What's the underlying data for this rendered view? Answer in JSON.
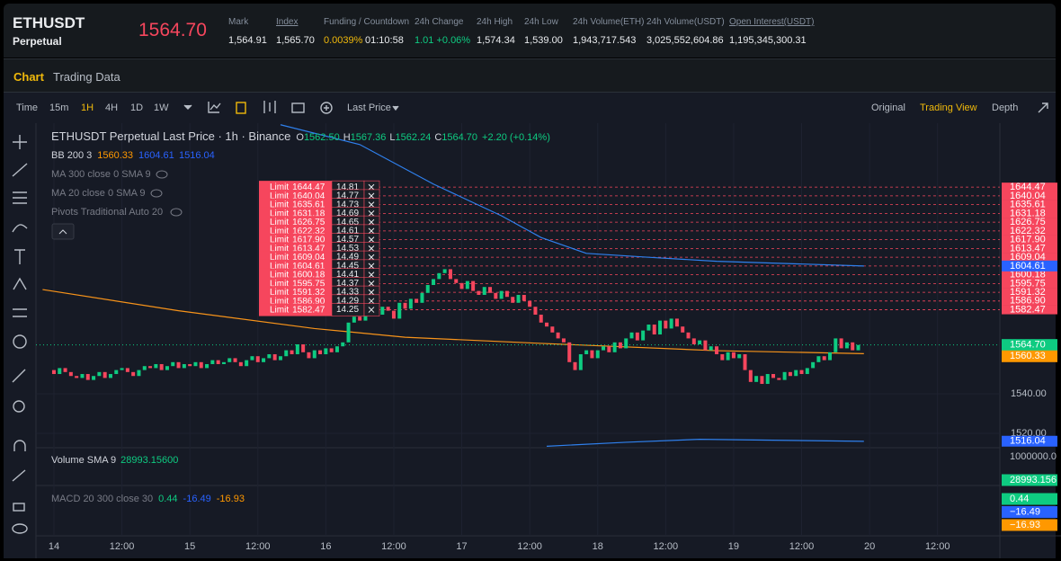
{
  "header": {
    "symbol": "ETHUSDT",
    "contract": "Perpetual",
    "last_price": "1564.70",
    "stats": [
      {
        "label": "Mark",
        "value": "1,564.91"
      },
      {
        "label": "Index",
        "value": "1,565.70"
      },
      {
        "label": "Funding / Countdown",
        "value": "0.0039%",
        "extra": "01:10:58"
      },
      {
        "label": "24h Change",
        "value": "1.01 +0.06%"
      },
      {
        "label": "24h High",
        "value": "1,574.34"
      },
      {
        "label": "24h Low",
        "value": "1,539.00"
      },
      {
        "label": "24h Volume(ETH)",
        "value": "1,943,717.543"
      },
      {
        "label": "24h Volume(USDT)",
        "value": "3,025,552,604.86"
      },
      {
        "label": "Open Interest(USDT)",
        "value": "1,195,345,300.31"
      }
    ]
  },
  "tabs": [
    "Chart",
    "Trading Data"
  ],
  "toolbar": {
    "items": [
      "Time",
      "15m",
      "1H",
      "4H",
      "1D",
      "1W"
    ],
    "price_source": "Last Price",
    "views": [
      "Original",
      "Trading View",
      "Depth"
    ]
  },
  "chart": {
    "type": "candlestick",
    "legend": {
      "title": "ETHUSDT Perpetual Last Price · 1h · Binance",
      "open": "1562.50",
      "high": "1567.36",
      "low": "1562.24",
      "close": "1564.70",
      "change": "+2.20 (+0.14%)"
    },
    "bb": {
      "label": "BB 200 3",
      "basis": "1560.33",
      "upper": "1604.61",
      "lower": "1516.04"
    },
    "studies": [
      "MA 300 close 0 SMA 9",
      "MA 20 close 0 SMA 9",
      "Pivots Traditional Auto 20"
    ],
    "volume": {
      "label": "Volume SMA 9",
      "value": "28993.15600",
      "scale": "1000000.0",
      "axis_value": "28993.156"
    },
    "macd": {
      "label": "MACD 20 300 close 30",
      "values": [
        "0.44",
        "-16.49",
        "-16.93"
      ],
      "axis_values": [
        "0.44",
        "−16.49",
        "−16.93"
      ],
      "colors": [
        "#0ecb81",
        "#2962ff",
        "#ff9800"
      ]
    },
    "xlim": [
      -1.9,
      167
    ],
    "ylim": [
      1513.2,
      1676.8
    ],
    "xticks": [
      {
        "value": 0,
        "label": "14"
      },
      {
        "value": 12,
        "label": "12:00"
      },
      {
        "value": 24,
        "label": "15"
      },
      {
        "value": 36,
        "label": "12:00"
      },
      {
        "value": 48,
        "label": "16"
      },
      {
        "value": 60,
        "label": "12:00"
      },
      {
        "value": 72,
        "label": "17"
      },
      {
        "value": 84,
        "label": "12:00"
      },
      {
        "value": 96,
        "label": "18"
      },
      {
        "value": 108,
        "label": "12:00"
      },
      {
        "value": 120,
        "label": "19"
      },
      {
        "value": 132,
        "label": "12:00"
      },
      {
        "value": 144,
        "label": "20"
      },
      {
        "value": 156,
        "label": "12:00"
      }
    ],
    "yticks": [
      "1540.00",
      "1520.00"
    ],
    "first_hour": -1,
    "up_color": "#0ecb81",
    "down_color": "#f6465d",
    "closes": [
      1552,
      1550,
      1553,
      1551,
      1549,
      1548,
      1550,
      1547,
      1549,
      1551,
      1548,
      1550,
      1552,
      1553,
      1551,
      1549,
      1552,
      1554,
      1553,
      1555,
      1552,
      1554,
      1556,
      1553,
      1555,
      1554,
      1556,
      1553,
      1555,
      1557,
      1555,
      1556,
      1558,
      1556,
      1554,
      1557,
      1559,
      1556,
      1558,
      1560,
      1557,
      1559,
      1562,
      1560,
      1565,
      1561,
      1558,
      1562,
      1560,
      1563,
      1561,
      1564,
      1566,
      1576,
      1579,
      1577,
      1581,
      1583,
      1580,
      1584,
      1582,
      1578,
      1586,
      1583,
      1588,
      1586,
      1591,
      1595,
      1598,
      1601,
      1603,
      1598,
      1596,
      1593,
      1597,
      1592,
      1590,
      1594,
      1591,
      1588,
      1592,
      1589,
      1586,
      1590,
      1587,
      1584,
      1580,
      1576,
      1574,
      1571,
      1568,
      1566,
      1556,
      1552,
      1560,
      1562,
      1558,
      1562,
      1564,
      1561,
      1566,
      1563,
      1568,
      1571,
      1567,
      1572,
      1575,
      1570,
      1577,
      1573,
      1578,
      1574,
      1571,
      1568,
      1565,
      1567,
      1562,
      1564,
      1560,
      1557,
      1561,
      1558,
      1560,
      1552,
      1546,
      1549,
      1545,
      1550,
      1548,
      1547,
      1551,
      1549,
      1552,
      1550,
      1553,
      1556,
      1559,
      1557,
      1561,
      1568,
      1563,
      1566,
      1562,
      1564.7
    ],
    "lines": [
      {
        "color": "#2f80ed",
        "x": [
          40,
          54,
          67,
          79,
          86,
          94,
          105,
          117,
          143
        ],
        "values": [
          1676,
          1666,
          1646,
          1630,
          1619,
          1611,
          1609,
          1607,
          1604.6
        ]
      },
      {
        "color": "#f7931a",
        "x": [
          -2,
          22,
          46,
          62,
          86,
          117,
          143
        ],
        "values": [
          1592.7,
          1582,
          1573,
          1568.6,
          1565.5,
          1561.8,
          1560.3
        ]
      },
      {
        "color": "#2f80ed",
        "x": [
          87,
          101,
          114,
          143
        ],
        "values": [
          1513.5,
          1515.5,
          1517,
          1516
        ]
      }
    ],
    "orders": [
      {
        "type": "Limit",
        "price": "1644.47",
        "qty": "14.81"
      },
      {
        "type": "Limit",
        "price": "1640.04",
        "qty": "14.77"
      },
      {
        "type": "Limit",
        "price": "1635.61",
        "qty": "14.73"
      },
      {
        "type": "Limit",
        "price": "1631.18",
        "qty": "14.69"
      },
      {
        "type": "Limit",
        "price": "1626.75",
        "qty": "14.65"
      },
      {
        "type": "Limit",
        "price": "1622.32",
        "qty": "14.61"
      },
      {
        "type": "Limit",
        "price": "1617.90",
        "qty": "14.57"
      },
      {
        "type": "Limit",
        "price": "1613.47",
        "qty": "14.53"
      },
      {
        "type": "Limit",
        "price": "1609.04",
        "qty": "14.49"
      },
      {
        "type": "Limit",
        "price": "1604.61",
        "qty": "14.45"
      },
      {
        "type": "Limit",
        "price": "1600.18",
        "qty": "14.41"
      },
      {
        "type": "Limit",
        "price": "1595.75",
        "qty": "14.37"
      },
      {
        "type": "Limit",
        "price": "1591.32",
        "qty": "14.33"
      },
      {
        "type": "Limit",
        "price": "1586.90",
        "qty": "14.29"
      },
      {
        "type": "Limit",
        "price": "1582.47",
        "qty": "14.25"
      }
    ]
  }
}
